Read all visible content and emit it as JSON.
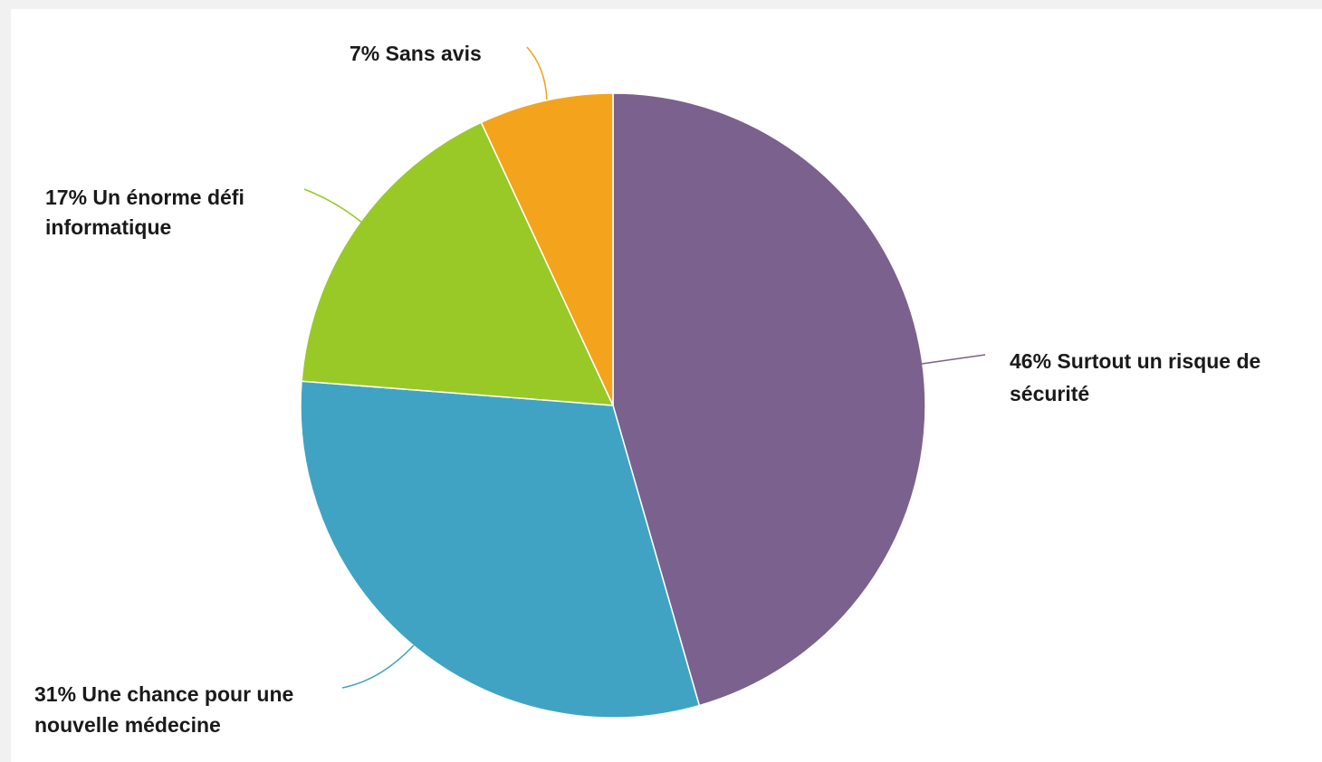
{
  "chart_data": {
    "type": "pie",
    "slices": [
      {
        "value": 46,
        "color": "#7B618E",
        "label_lines": [
          "46% Surtout un risque de",
          "sécurité"
        ]
      },
      {
        "value": 31,
        "color": "#40A3C3",
        "label_lines": [
          "31% Une chance pour une",
          "nouvelle médecine"
        ]
      },
      {
        "value": 17,
        "color": "#99C927",
        "label_lines": [
          "17% Un énorme défi",
          "informatique"
        ]
      },
      {
        "value": 7,
        "color": "#F4A41C",
        "label_lines": [
          "7% Sans avis"
        ]
      }
    ],
    "start_position": "12 o'clock",
    "direction": "clockwise",
    "legend": "none"
  }
}
